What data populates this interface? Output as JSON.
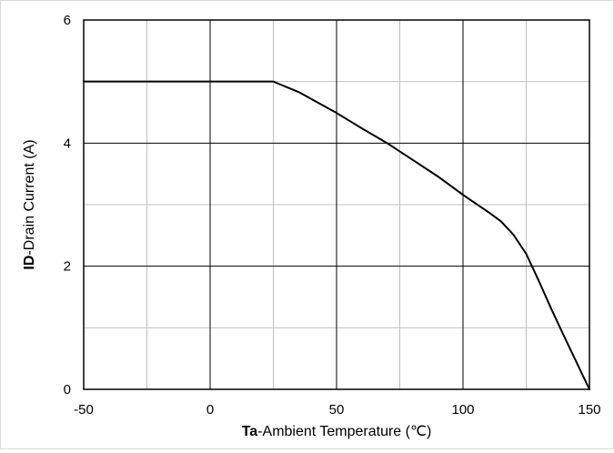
{
  "chart_data": {
    "type": "line",
    "xlabel": {
      "bold": "Ta",
      "rest": "-Ambient  Temperature (℃)"
    },
    "ylabel": {
      "bold": "ID",
      "rest": "-Drain Current (A)"
    },
    "xlim": [
      -50,
      150
    ],
    "ylim": [
      0,
      6
    ],
    "xticks": [
      -50,
      0,
      50,
      100,
      150
    ],
    "yticks": [
      0,
      2,
      4,
      6
    ],
    "x_minor_gridlines": [
      -25,
      25,
      75,
      125
    ],
    "y_minor_gridlines": [
      1,
      3,
      5
    ],
    "grid": true,
    "legend": "none",
    "series": [
      {
        "x": [
          -50,
          25,
          35,
          50,
          60,
          70,
          80,
          90,
          100,
          105,
          110,
          115,
          120,
          125,
          130,
          135,
          140,
          145,
          150
        ],
        "y": [
          5.0,
          5.0,
          4.83,
          4.49,
          4.24,
          4.0,
          3.73,
          3.46,
          3.16,
          3.02,
          2.88,
          2.73,
          2.51,
          2.2,
          1.76,
          1.3,
          0.86,
          0.43,
          0.0
        ]
      }
    ],
    "colors": {
      "line": "#000000",
      "major_grid": "#000000",
      "minor_grid": "#c0c0c0",
      "frame": "#000000"
    }
  }
}
